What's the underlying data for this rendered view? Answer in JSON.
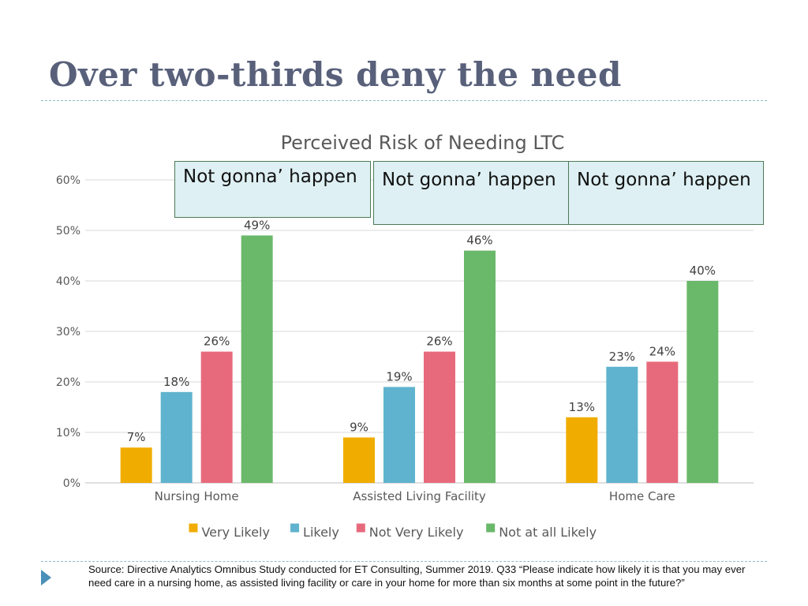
{
  "slide": {
    "title": "Over two-thirds deny the need",
    "source": "Source:  Directive Analytics Omnibus Study conducted for ET Consulting, Summer 2019.  Q33  “Please indicate how likely it is that you may ever need care in a nursing home, as assisted living facility  or care in your home for more than six months at some point in the future?”"
  },
  "callouts": [
    {
      "text": "Not gonna’ happen"
    },
    {
      "text": "Not gonna’ happen"
    },
    {
      "text": "Not gonna’ happen"
    }
  ],
  "chart_data": {
    "type": "bar",
    "title": "Perceived Risk of Needing LTC",
    "categories": [
      "Nursing Home",
      "Assisted Living Facility",
      "Home Care"
    ],
    "series": [
      {
        "name": "Very Likely",
        "values": [
          7,
          9,
          13
        ],
        "color": "#f0ad00"
      },
      {
        "name": "Likely",
        "values": [
          18,
          19,
          23
        ],
        "color": "#5fb3ce"
      },
      {
        "name": "Not Very Likely",
        "values": [
          26,
          26,
          24
        ],
        "color": "#e76a7c"
      },
      {
        "name": "Not at all Likely",
        "values": [
          49,
          46,
          40
        ],
        "color": "#6ab86a"
      }
    ],
    "ylim": [
      0,
      60
    ],
    "yticks": [
      0,
      10,
      20,
      30,
      40,
      50,
      60
    ],
    "value_suffix": "%",
    "grid": true,
    "legend": "bottom"
  }
}
